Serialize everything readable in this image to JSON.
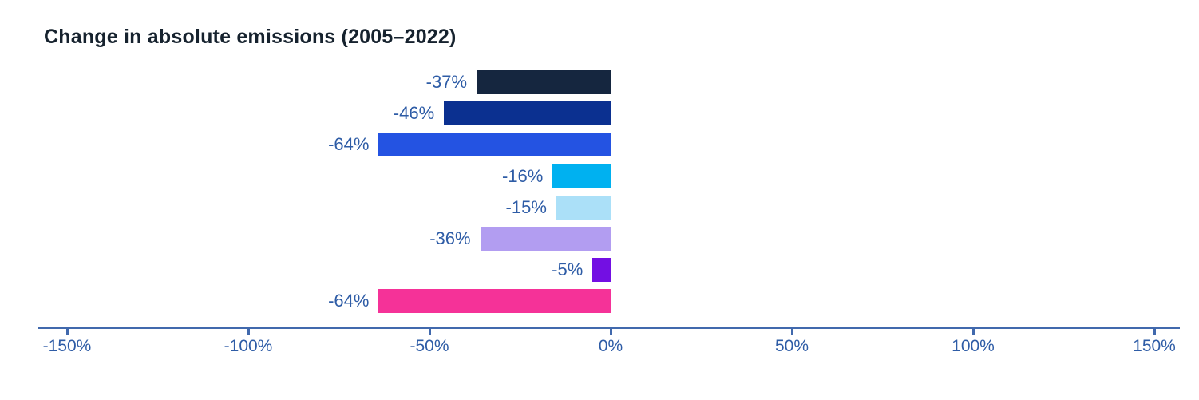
{
  "chart_data": {
    "type": "bar",
    "orientation": "horizontal",
    "title": "Change in absolute emissions (2005–2022)",
    "values": [
      -37,
      -46,
      -64,
      -16,
      -15,
      -36,
      -5,
      -64
    ],
    "bar_labels": [
      "-37%",
      "-46%",
      "-64%",
      "-16%",
      "-15%",
      "-36%",
      "-5%",
      "-64%"
    ],
    "bar_colors": [
      "#15263f",
      "#0b3090",
      "#2453e2",
      "#00b1f0",
      "#abe0f8",
      "#b29df1",
      "#730fe3",
      "#f53298"
    ],
    "x_ticks": [
      "-150%",
      "-100%",
      "-50%",
      "0%",
      "50%",
      "100%",
      "150%"
    ],
    "x_tick_values": [
      -150,
      -100,
      -50,
      0,
      50,
      100,
      150
    ],
    "xlim": [
      -158,
      157
    ],
    "grid": false,
    "legend": "none",
    "xlabel": "",
    "ylabel": "",
    "colors": {
      "title_color": "#16222e",
      "value_label_color": "#2e5ca6",
      "tick_label_color": "#2e5ca6",
      "axis_color": "#4169ad",
      "background": "#ffffff"
    }
  }
}
